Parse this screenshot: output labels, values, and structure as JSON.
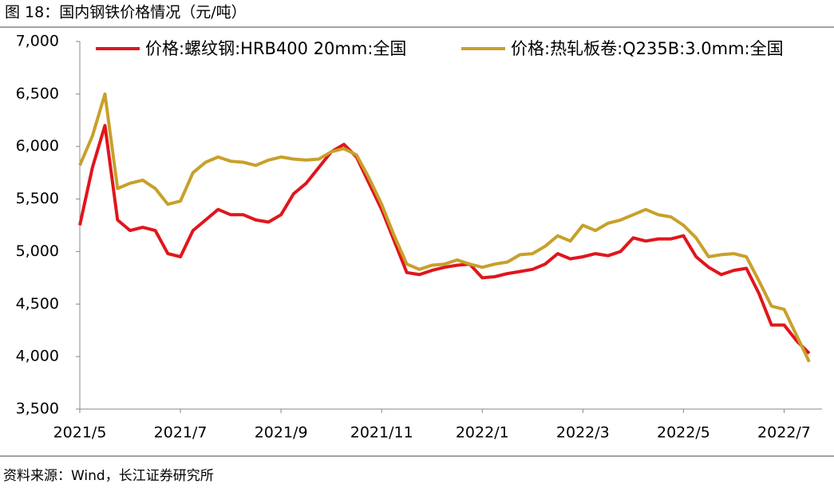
{
  "title": "图 18：国内钢铁价格情况（元/吨）",
  "chart_data": {
    "type": "line",
    "categories": [
      "2021/5",
      null,
      null,
      null,
      null,
      null,
      null,
      null,
      "2021/7",
      null,
      null,
      null,
      null,
      null,
      null,
      null,
      "2021/9",
      null,
      null,
      null,
      null,
      null,
      null,
      null,
      "2021/11",
      null,
      null,
      null,
      null,
      null,
      null,
      null,
      "2022/1",
      null,
      null,
      null,
      null,
      null,
      null,
      null,
      "2022/3",
      null,
      null,
      null,
      null,
      null,
      null,
      null,
      "2022/5",
      null,
      null,
      null,
      null,
      null,
      null,
      null,
      "2022/7",
      null,
      null
    ],
    "series": [
      {
        "name": "价格:螺纹钢:HRB400 20mm:全国",
        "color": "#e0161c",
        "values": [
          5250,
          5800,
          6200,
          5300,
          5200,
          5230,
          5200,
          4980,
          4950,
          5200,
          5300,
          5400,
          5350,
          5350,
          5300,
          5280,
          5350,
          5550,
          5650,
          5800,
          5950,
          6020,
          5900,
          5650,
          5400,
          5100,
          4800,
          4780,
          4820,
          4850,
          4870,
          4880,
          4750,
          4760,
          4790,
          4810,
          4830,
          4880,
          4980,
          4930,
          4950,
          4980,
          4960,
          5000,
          5130,
          5100,
          5120,
          5120,
          5150,
          4950,
          4850,
          4780,
          4820,
          4840,
          4600,
          4300,
          4300,
          4150,
          4030
        ]
      },
      {
        "name": "价格:热轧板卷:Q235B:3.0mm:全国",
        "color": "#c8a02a",
        "values": [
          5820,
          6100,
          6500,
          5600,
          5650,
          5680,
          5600,
          5450,
          5480,
          5750,
          5850,
          5900,
          5860,
          5850,
          5820,
          5870,
          5900,
          5880,
          5870,
          5880,
          5950,
          5980,
          5920,
          5700,
          5450,
          5150,
          4880,
          4830,
          4870,
          4880,
          4920,
          4880,
          4850,
          4880,
          4900,
          4970,
          4980,
          5050,
          5150,
          5100,
          5250,
          5200,
          5270,
          5300,
          5350,
          5400,
          5350,
          5330,
          5250,
          5130,
          4950,
          4970,
          4980,
          4950,
          4720,
          4480,
          4450,
          4200,
          3950
        ]
      }
    ],
    "ylim": [
      3500,
      7000
    ],
    "yticks": [
      {
        "value": 3500,
        "label": "3,500"
      },
      {
        "value": 4000,
        "label": "4,000"
      },
      {
        "value": 4500,
        "label": "4,500"
      },
      {
        "value": 5000,
        "label": "5,000"
      },
      {
        "value": 5500,
        "label": "5,500"
      },
      {
        "value": 6000,
        "label": "6,000"
      },
      {
        "value": 6500,
        "label": "6,500"
      },
      {
        "value": 7000,
        "label": "7,000"
      }
    ],
    "grid": false,
    "legend": "top"
  },
  "source": "资料来源：Wind，长江证券研究所"
}
